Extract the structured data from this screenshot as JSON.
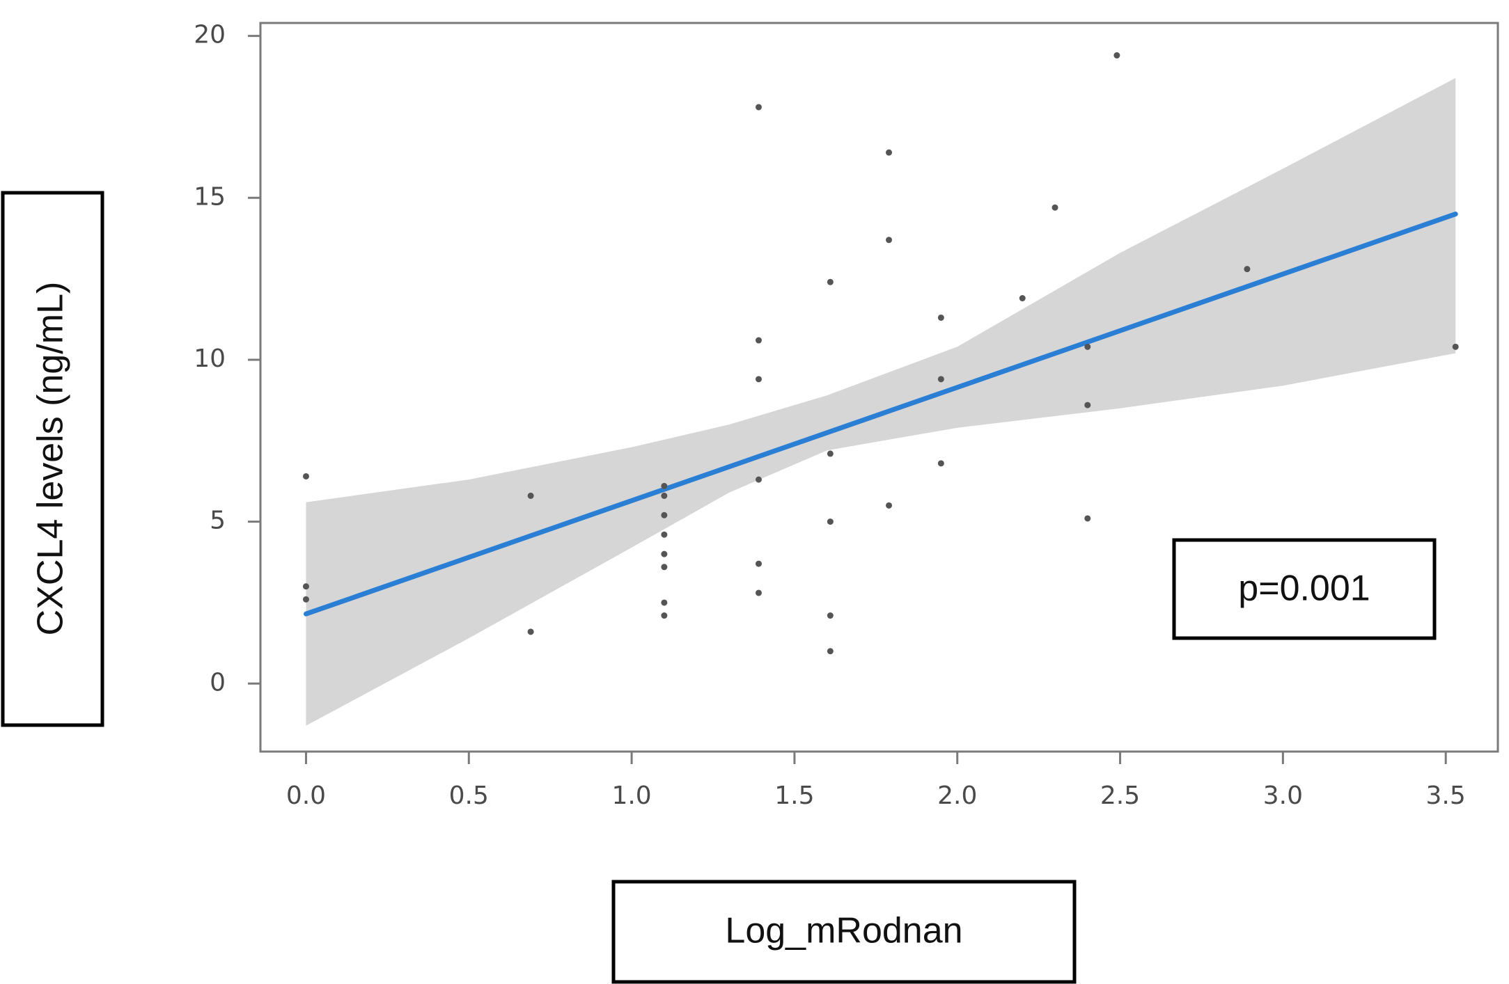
{
  "chart_data": {
    "type": "scatter",
    "xlabel": "Log_mRodnan",
    "ylabel": "CXCL4 levels (ng/mL)",
    "annotation": "p=0.001",
    "xlim": [
      -0.14,
      3.66
    ],
    "ylim": [
      -2.1,
      20.4
    ],
    "x_ticks": [
      0.0,
      0.5,
      1.0,
      1.5,
      2.0,
      2.5,
      3.0,
      3.5
    ],
    "x_tick_labels": [
      "0.0",
      "0.5",
      "1.0",
      "1.5",
      "2.0",
      "2.5",
      "3.0",
      "3.5"
    ],
    "y_ticks": [
      0,
      5,
      10,
      15,
      20
    ],
    "y_tick_labels": [
      "0",
      "5",
      "10",
      "15",
      "20"
    ],
    "grid": false,
    "point_color": "#555555",
    "line_color": "#2a7fd4",
    "band_color": "#d6d6d6",
    "points": [
      {
        "x": 0.0,
        "y": 6.4
      },
      {
        "x": 0.0,
        "y": 3.0
      },
      {
        "x": 0.0,
        "y": 2.6
      },
      {
        "x": 0.69,
        "y": 5.8
      },
      {
        "x": 0.69,
        "y": 1.6
      },
      {
        "x": 1.1,
        "y": 6.1
      },
      {
        "x": 1.1,
        "y": 5.8
      },
      {
        "x": 1.1,
        "y": 5.2
      },
      {
        "x": 1.1,
        "y": 4.6
      },
      {
        "x": 1.1,
        "y": 4.0
      },
      {
        "x": 1.1,
        "y": 3.6
      },
      {
        "x": 1.1,
        "y": 2.5
      },
      {
        "x": 1.1,
        "y": 2.1
      },
      {
        "x": 1.39,
        "y": 17.8
      },
      {
        "x": 1.39,
        "y": 10.6
      },
      {
        "x": 1.39,
        "y": 9.4
      },
      {
        "x": 1.39,
        "y": 6.3
      },
      {
        "x": 1.39,
        "y": 3.7
      },
      {
        "x": 1.39,
        "y": 2.8
      },
      {
        "x": 1.61,
        "y": 12.4
      },
      {
        "x": 1.61,
        "y": 7.1
      },
      {
        "x": 1.61,
        "y": 5.0
      },
      {
        "x": 1.61,
        "y": 2.1
      },
      {
        "x": 1.61,
        "y": 1.0
      },
      {
        "x": 1.79,
        "y": 16.4
      },
      {
        "x": 1.79,
        "y": 13.7
      },
      {
        "x": 1.79,
        "y": 5.5
      },
      {
        "x": 1.95,
        "y": 11.3
      },
      {
        "x": 1.95,
        "y": 9.4
      },
      {
        "x": 1.95,
        "y": 6.8
      },
      {
        "x": 2.2,
        "y": 11.9
      },
      {
        "x": 2.3,
        "y": 14.7
      },
      {
        "x": 2.4,
        "y": 10.4
      },
      {
        "x": 2.4,
        "y": 8.6
      },
      {
        "x": 2.4,
        "y": 5.1
      },
      {
        "x": 2.49,
        "y": 19.4
      },
      {
        "x": 2.89,
        "y": 12.8
      },
      {
        "x": 3.53,
        "y": 10.4
      }
    ],
    "fit_line": [
      {
        "x": 0.0,
        "y": 2.15
      },
      {
        "x": 3.53,
        "y": 14.5
      }
    ],
    "confidence_band": [
      {
        "x": 0.0,
        "lower": -1.3,
        "upper": 5.6
      },
      {
        "x": 0.5,
        "lower": 1.4,
        "upper": 6.3
      },
      {
        "x": 1.0,
        "lower": 4.2,
        "upper": 7.3
      },
      {
        "x": 1.3,
        "lower": 5.9,
        "upper": 8.0
      },
      {
        "x": 1.6,
        "lower": 7.2,
        "upper": 8.9
      },
      {
        "x": 2.0,
        "lower": 7.9,
        "upper": 10.4
      },
      {
        "x": 2.5,
        "lower": 8.5,
        "upper": 13.3
      },
      {
        "x": 3.0,
        "lower": 9.2,
        "upper": 15.9
      },
      {
        "x": 3.53,
        "lower": 10.2,
        "upper": 18.7
      }
    ]
  }
}
